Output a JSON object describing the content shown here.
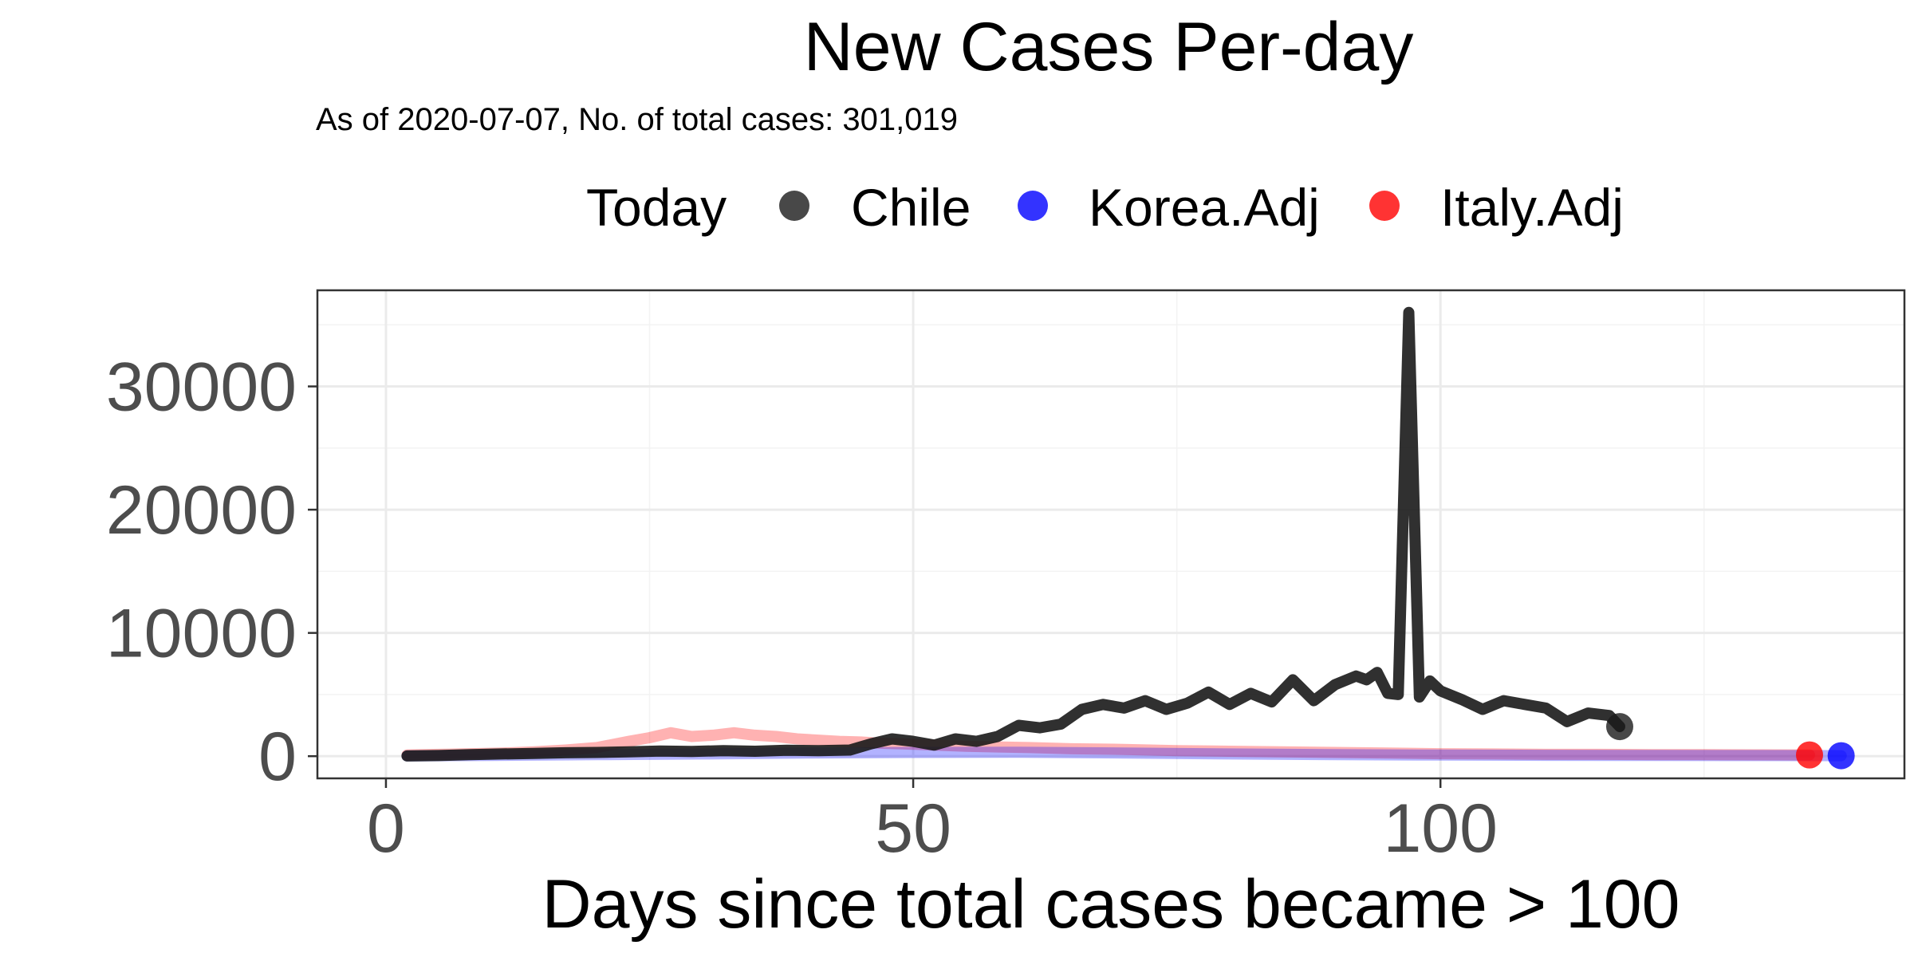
{
  "chart_data": {
    "type": "line",
    "title": "New Cases Per-day",
    "subtitle": "As of 2020-07-07, No. of total cases: 301,019",
    "legend": {
      "title": "Today",
      "position": "top",
      "items": [
        {
          "label": "Chile",
          "color": "#1a1a1a"
        },
        {
          "label": "Korea.Adj",
          "color": "#0000ff"
        },
        {
          "label": "Italy.Adj",
          "color": "#ff0000"
        }
      ]
    },
    "xlabel": "Days since total cases became > 100",
    "ylabel": "",
    "xlim": [
      -6.5,
      144
    ],
    "ylim": [
      -1800,
      37800
    ],
    "xticks": [
      0,
      50,
      100
    ],
    "yticks": [
      0,
      10000,
      20000,
      30000
    ],
    "grid": true,
    "series": [
      {
        "name": "Italy.Adj",
        "color": "#ff0000",
        "opacity": 0.3,
        "points": [
          [
            2,
            100
          ],
          [
            5,
            150
          ],
          [
            8,
            200
          ],
          [
            11,
            250
          ],
          [
            14,
            350
          ],
          [
            17,
            500
          ],
          [
            20,
            700
          ],
          [
            23,
            1200
          ],
          [
            25,
            1500
          ],
          [
            27,
            1900
          ],
          [
            29,
            1600
          ],
          [
            31,
            1700
          ],
          [
            33,
            1900
          ],
          [
            35,
            1700
          ],
          [
            37,
            1600
          ],
          [
            39,
            1400
          ],
          [
            41,
            1300
          ],
          [
            43,
            1200
          ],
          [
            45,
            1150
          ],
          [
            47,
            1050
          ],
          [
            49,
            1000
          ],
          [
            52,
            900
          ],
          [
            55,
            800
          ],
          [
            58,
            750
          ],
          [
            61,
            700
          ],
          [
            65,
            600
          ],
          [
            70,
            550
          ],
          [
            75,
            450
          ],
          [
            80,
            400
          ],
          [
            85,
            350
          ],
          [
            90,
            300
          ],
          [
            95,
            250
          ],
          [
            100,
            200
          ],
          [
            105,
            180
          ],
          [
            110,
            150
          ],
          [
            115,
            150
          ],
          [
            120,
            130
          ],
          [
            125,
            120
          ],
          [
            130,
            110
          ],
          [
            135,
            100
          ]
        ]
      },
      {
        "name": "Korea.Adj",
        "color": "#0000ff",
        "opacity": 0.3,
        "points": [
          [
            2,
            20
          ],
          [
            10,
            60
          ],
          [
            20,
            120
          ],
          [
            30,
            180
          ],
          [
            40,
            250
          ],
          [
            50,
            300
          ],
          [
            60,
            320
          ],
          [
            70,
            260
          ],
          [
            80,
            180
          ],
          [
            90,
            120
          ],
          [
            100,
            90
          ],
          [
            110,
            70
          ],
          [
            120,
            60
          ],
          [
            130,
            50
          ],
          [
            138,
            40
          ]
        ]
      },
      {
        "name": "Chile",
        "color": "#1a1a1a",
        "opacity": 0.9,
        "points": [
          [
            2,
            20
          ],
          [
            5,
            50
          ],
          [
            8,
            120
          ],
          [
            11,
            180
          ],
          [
            14,
            220
          ],
          [
            17,
            280
          ],
          [
            20,
            300
          ],
          [
            23,
            350
          ],
          [
            26,
            420
          ],
          [
            29,
            380
          ],
          [
            32,
            450
          ],
          [
            35,
            400
          ],
          [
            38,
            480
          ],
          [
            41,
            450
          ],
          [
            44,
            500
          ],
          [
            46,
            1000
          ],
          [
            48,
            1400
          ],
          [
            50,
            1200
          ],
          [
            52,
            900
          ],
          [
            54,
            1400
          ],
          [
            56,
            1200
          ],
          [
            58,
            1600
          ],
          [
            60,
            2500
          ],
          [
            62,
            2300
          ],
          [
            64,
            2600
          ],
          [
            66,
            3800
          ],
          [
            68,
            4200
          ],
          [
            70,
            3900
          ],
          [
            72,
            4500
          ],
          [
            74,
            3800
          ],
          [
            76,
            4300
          ],
          [
            78,
            5200
          ],
          [
            80,
            4200
          ],
          [
            82,
            5100
          ],
          [
            84,
            4400
          ],
          [
            86,
            6200
          ],
          [
            88,
            4500
          ],
          [
            90,
            5800
          ],
          [
            92,
            6500
          ],
          [
            93,
            6200
          ],
          [
            94,
            6800
          ],
          [
            95,
            5100
          ],
          [
            96,
            5000
          ],
          [
            97,
            36000
          ],
          [
            98,
            4800
          ],
          [
            99,
            6100
          ],
          [
            100,
            5300
          ],
          [
            102,
            4600
          ],
          [
            104,
            3800
          ],
          [
            106,
            4500
          ],
          [
            108,
            4200
          ],
          [
            110,
            3900
          ],
          [
            112,
            2800
          ],
          [
            114,
            3500
          ],
          [
            116,
            3300
          ],
          [
            117,
            2400
          ]
        ]
      }
    ],
    "endpoints": [
      {
        "series": "Chile",
        "x": 117,
        "y": 2400,
        "color": "#1a1a1a"
      },
      {
        "series": "Italy.Adj",
        "x": 135,
        "y": 100,
        "color": "#ff0000"
      },
      {
        "series": "Korea.Adj",
        "x": 138,
        "y": 40,
        "color": "#0000ff"
      }
    ]
  }
}
